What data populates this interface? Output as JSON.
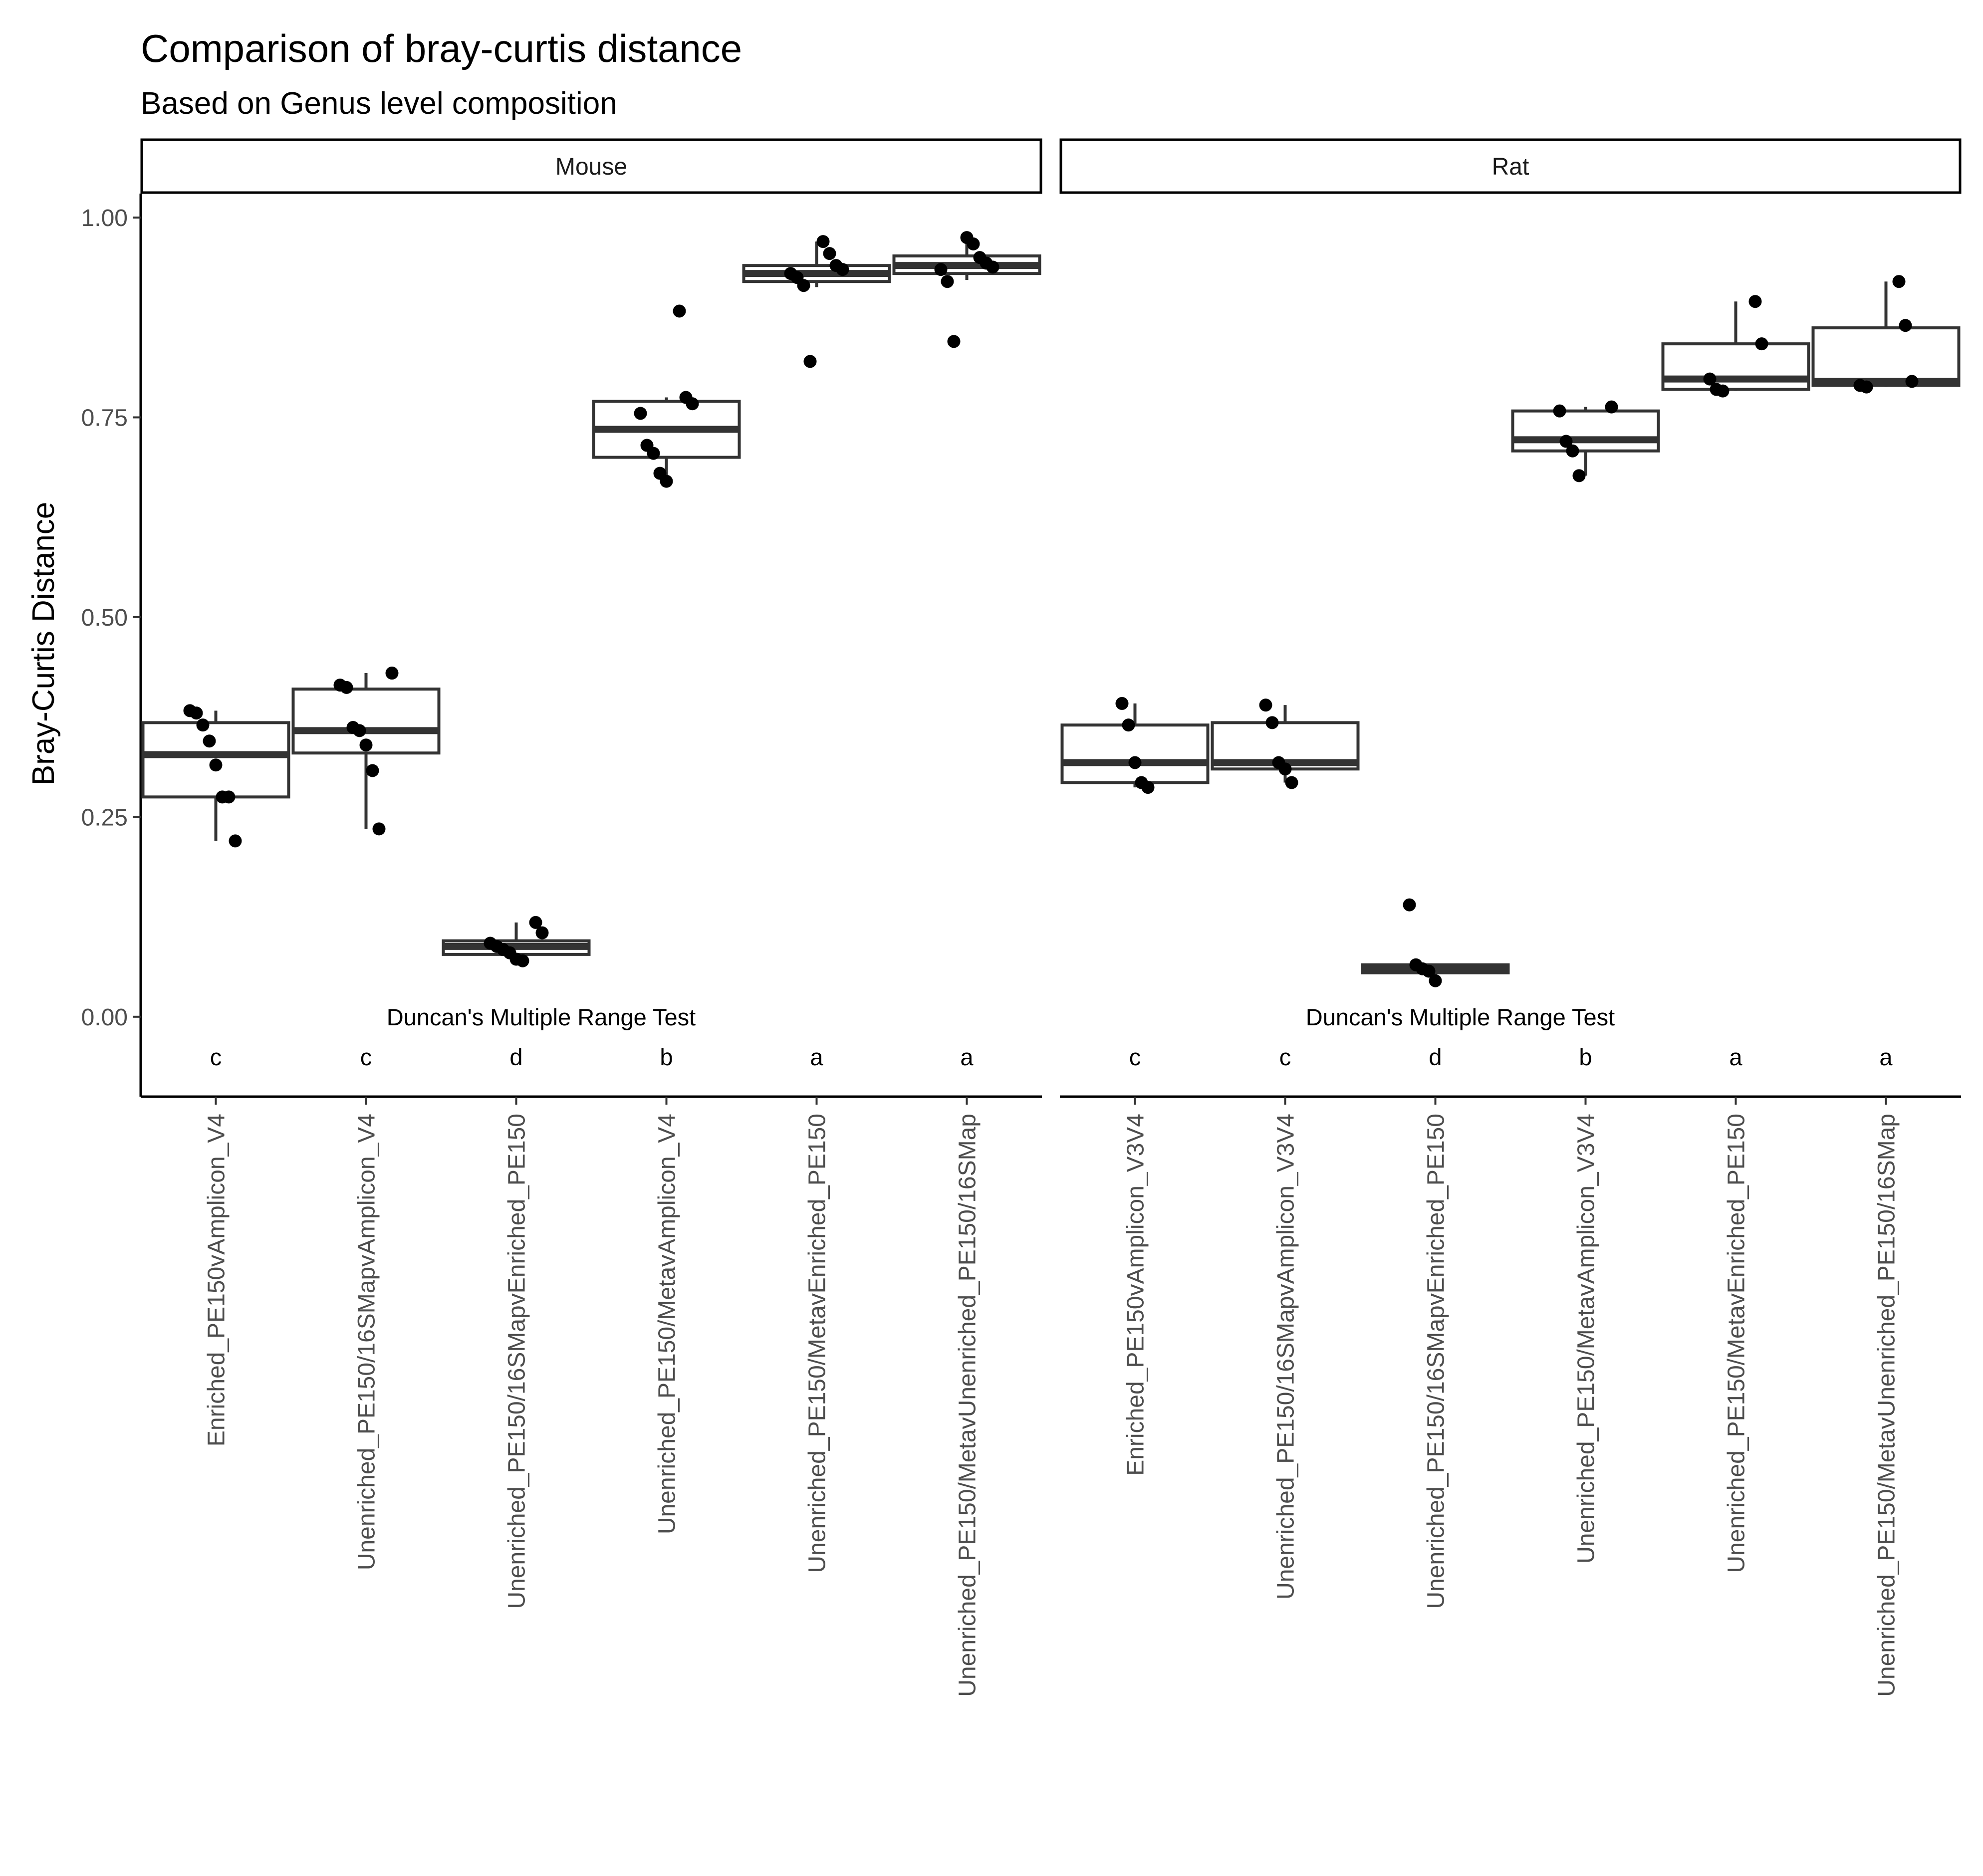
{
  "chart_data": {
    "type": "box",
    "title": "Comparison of bray-curtis distance",
    "subtitle": "Based on Genus level composition",
    "xlabel": "",
    "ylabel": "Bray-Curtis Distance",
    "ylim": [
      -0.1,
      1.03
    ],
    "yticks": [
      0.0,
      0.25,
      0.5,
      0.75,
      1.0
    ],
    "ytick_labels": [
      "0.00",
      "0.25",
      "0.50",
      "0.75",
      "1.00"
    ],
    "grid": false,
    "legend": "none",
    "colors": {
      "box_stroke": "#333333",
      "point": "#000000",
      "strip_border": "#000000",
      "axis": "#000000"
    },
    "annotation": {
      "text": "Duncan's Multiple Range Test",
      "y": 0.0
    },
    "letters_y": -0.05,
    "facets": [
      {
        "name": "Mouse",
        "categories": [
          "Enriched_PE150vAmplicon_V4",
          "Unenriched_PE150/16SMapvAmplicon_V4",
          "Unenriched_PE150/16SMapvEnriched_PE150",
          "Unenriched_PE150/MetavAmplicon_V4",
          "Unenriched_PE150/MetavEnriched_PE150",
          "Unenriched_PE150/MetavUnenriched_PE150/16SMap"
        ],
        "letters": [
          "c",
          "c",
          "d",
          "b",
          "a",
          "a"
        ],
        "boxes": [
          {
            "whisker_low": 0.22,
            "q1": 0.275,
            "median": 0.328,
            "q3": 0.368,
            "whisker_high": 0.383
          },
          {
            "whisker_low": 0.235,
            "q1": 0.33,
            "median": 0.358,
            "q3": 0.41,
            "whisker_high": 0.43
          },
          {
            "whisker_low": 0.07,
            "q1": 0.078,
            "median": 0.088,
            "q3": 0.095,
            "whisker_high": 0.118
          },
          {
            "whisker_low": 0.67,
            "q1": 0.7,
            "median": 0.735,
            "q3": 0.77,
            "whisker_high": 0.775
          },
          {
            "whisker_low": 0.913,
            "q1": 0.92,
            "median": 0.93,
            "q3": 0.94,
            "whisker_high": 0.97
          },
          {
            "whisker_low": 0.922,
            "q1": 0.93,
            "median": 0.94,
            "q3": 0.952,
            "whisker_high": 0.975
          }
        ],
        "points": [
          [
            0.383,
            0.38,
            0.365,
            0.345,
            0.315,
            0.275,
            0.275,
            0.22
          ],
          [
            0.43,
            0.415,
            0.412,
            0.362,
            0.358,
            0.34,
            0.308,
            0.235
          ],
          [
            0.118,
            0.105,
            0.092,
            0.088,
            0.084,
            0.08,
            0.072,
            0.07
          ],
          [
            0.883,
            0.775,
            0.767,
            0.755,
            0.715,
            0.705,
            0.68,
            0.67
          ],
          [
            0.97,
            0.955,
            0.94,
            0.935,
            0.93,
            0.925,
            0.915,
            0.82
          ],
          [
            0.975,
            0.967,
            0.95,
            0.943,
            0.938,
            0.935,
            0.92,
            0.845
          ]
        ]
      },
      {
        "name": "Rat",
        "categories": [
          "Enriched_PE150vAmplicon_V3V4",
          "Unenriched_PE150/16SMapvAmplicon_V3V4",
          "Unenriched_PE150/16SMapvEnriched_PE150",
          "Unenriched_PE150/MetavAmplicon_V3V4",
          "Unenriched_PE150/MetavEnriched_PE150",
          "Unenriched_PE150/MetavUnenriched_PE150/16SMap"
        ],
        "letters": [
          "c",
          "c",
          "d",
          "b",
          "a",
          "a"
        ],
        "boxes": [
          {
            "whisker_low": 0.287,
            "q1": 0.293,
            "median": 0.318,
            "q3": 0.365,
            "whisker_high": 0.392
          },
          {
            "whisker_low": 0.293,
            "q1": 0.31,
            "median": 0.318,
            "q3": 0.368,
            "whisker_high": 0.39
          },
          {
            "whisker_low": 0.045,
            "q1": 0.055,
            "median": 0.06,
            "q3": 0.065,
            "whisker_high": 0.065
          },
          {
            "whisker_low": 0.677,
            "q1": 0.708,
            "median": 0.722,
            "q3": 0.758,
            "whisker_high": 0.763
          },
          {
            "whisker_low": 0.783,
            "q1": 0.785,
            "median": 0.798,
            "q3": 0.842,
            "whisker_high": 0.895
          },
          {
            "whisker_low": 0.788,
            "q1": 0.79,
            "median": 0.795,
            "q3": 0.862,
            "whisker_high": 0.92
          }
        ],
        "points": [
          [
            0.392,
            0.365,
            0.318,
            0.293,
            0.287
          ],
          [
            0.39,
            0.368,
            0.318,
            0.31,
            0.293
          ],
          [
            0.14,
            0.065,
            0.06,
            0.057,
            0.045
          ],
          [
            0.763,
            0.758,
            0.72,
            0.708,
            0.677
          ],
          [
            0.895,
            0.842,
            0.798,
            0.785,
            0.783
          ],
          [
            0.92,
            0.865,
            0.795,
            0.79,
            0.788
          ]
        ]
      }
    ]
  }
}
